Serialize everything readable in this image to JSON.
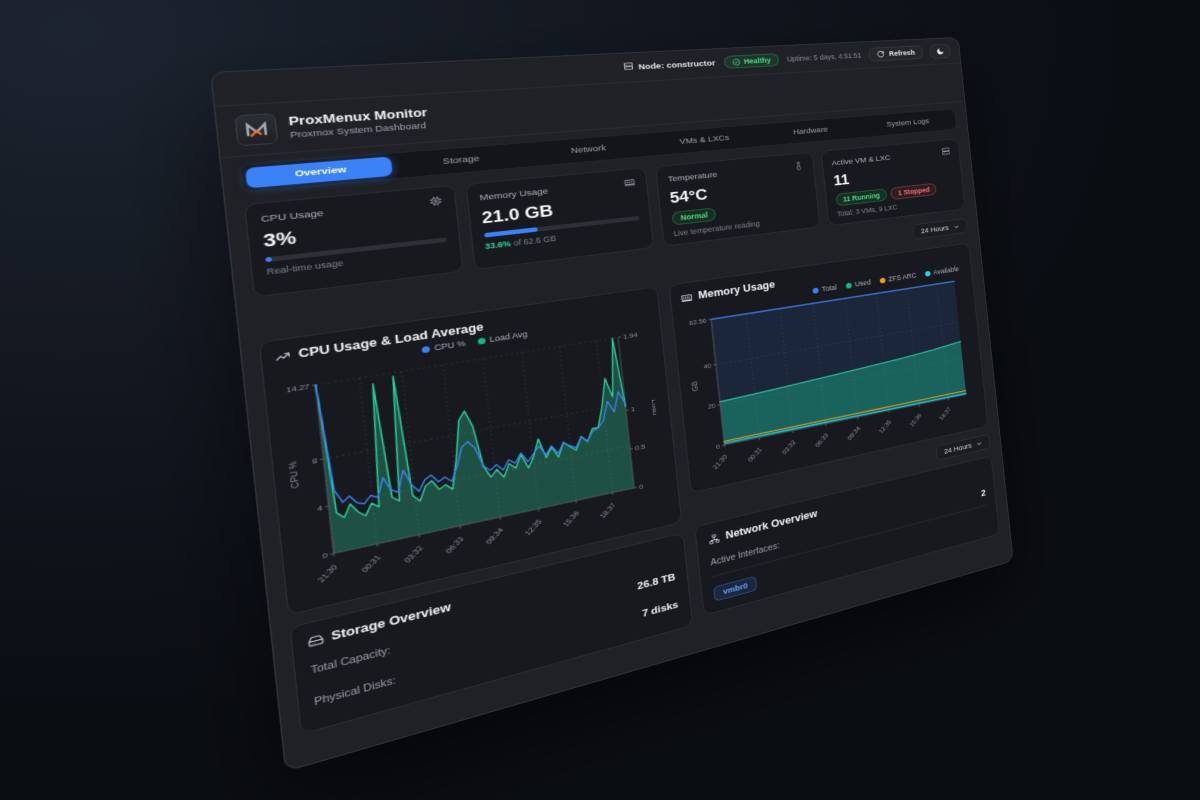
{
  "colors": {
    "accent": "#3b82f6",
    "green": "#4ade80",
    "red": "#f87171",
    "chart_green": "#2dd4a0",
    "orange": "#f59e0b",
    "cyan": "#22d3ee"
  },
  "icons": {
    "logo": "proxmenux-m",
    "node": "server",
    "health": "check-circle",
    "refresh": "refresh-arrows",
    "theme": "moon",
    "cpu": "cpu-chip",
    "memory": "ram-stick",
    "temperature": "thermometer",
    "vms": "server-stack",
    "cpu_chart": "trending-up",
    "memory_chart": "ram-stick",
    "storage": "hard-drive",
    "network": "org-chart",
    "select": "chevron-down"
  },
  "topbar": {
    "node_label": "Node: constructor",
    "health_label": "Healthy",
    "uptime": "Uptime: 5 days, 4:51:51",
    "refresh_label": "Refresh"
  },
  "header": {
    "title": "ProxMenux Monitor",
    "subtitle": "Proxmox System Dashboard"
  },
  "tabs": [
    {
      "label": "Overview",
      "active": true
    },
    {
      "label": "Storage",
      "active": false
    },
    {
      "label": "Network",
      "active": false
    },
    {
      "label": "VMs & LXCs",
      "active": false
    },
    {
      "label": "Hardware",
      "active": false
    },
    {
      "label": "System Logs",
      "active": false
    }
  ],
  "stats": {
    "cpu": {
      "label": "CPU Usage",
      "value": "3%",
      "pct": 3,
      "caption": "Real-time usage"
    },
    "memory": {
      "label": "Memory Usage",
      "value": "21.0 GB",
      "pct": 33.6,
      "caption_pct": "33.6%",
      "caption_rest": " of 62.6 GB"
    },
    "temperature": {
      "label": "Temperature",
      "value": "54°C",
      "badge": "Normal",
      "caption": "Live temperature reading"
    },
    "vms": {
      "label": "Active VM & LXC",
      "value": "11",
      "running_badge": "11 Running",
      "stopped_badge": "1 Stopped",
      "caption": "Total: 3 VMs, 9 LXC"
    }
  },
  "time_selector": {
    "label": "24 Hours"
  },
  "chart_data": [
    {
      "type": "line",
      "title": "CPU Usage & Load Average",
      "legend": [
        {
          "label": "CPU %",
          "color": "#3b82f6"
        },
        {
          "label": "Load Avg",
          "color": "#10b981"
        }
      ],
      "x_ticks": [
        "21:30",
        "00:31",
        "03:32",
        "06:33",
        "09:34",
        "12:35",
        "15:36",
        "18:37"
      ],
      "y_left": {
        "label": "CPU %",
        "ticks": [
          0,
          4,
          8
        ],
        "max": 14.27
      },
      "y_right": {
        "label": "Load",
        "ticks": [
          0,
          0.5,
          1
        ],
        "max": 1.94
      },
      "series": [
        {
          "name": "Load Avg",
          "axis": "right",
          "color": "#2dd4a0",
          "fill": "rgba(45,212,160,0.30)",
          "values": [
            1.94,
            0.45,
            0.38,
            0.52,
            0.41,
            0.35,
            0.48,
            0.42,
            1.85,
            0.5,
            0.44,
            1.9,
            0.47,
            0.39,
            0.55,
            0.6,
            0.48,
            0.52,
            0.45,
            0.8,
            1.25,
            1.35,
            1.15,
            0.65,
            0.5,
            0.58,
            0.47,
            0.62,
            0.55,
            0.7,
            0.52,
            0.65,
            0.85,
            0.6,
            0.72,
            0.58,
            0.75,
            0.68,
            0.62,
            0.78,
            0.7,
            0.85,
            0.85,
            1.1,
            1.45,
            1.2,
            1.94,
            1.05
          ]
        },
        {
          "name": "CPU %",
          "axis": "left",
          "color": "#3b82f6",
          "values": [
            14.27,
            5.2,
            4.1,
            4.5,
            3.8,
            3.6,
            4.2,
            3.9,
            5.5,
            4.3,
            4.0,
            5.8,
            4.4,
            3.7,
            4.6,
            4.9,
            4.2,
            4.5,
            4.0,
            5.2,
            6.8,
            7.2,
            6.5,
            4.8,
            4.3,
            4.7,
            4.1,
            4.9,
            4.5,
            5.3,
            4.4,
            5.0,
            5.6,
            4.7,
            5.4,
            4.6,
            5.5,
            5.1,
            4.8,
            5.7,
            5.2,
            6.0,
            6.2,
            6.8,
            8.5,
            7.4,
            9.2,
            8.0
          ]
        }
      ]
    },
    {
      "type": "area",
      "title": "Memory Usage",
      "legend": [
        {
          "label": "Total",
          "color": "#3b82f6"
        },
        {
          "label": "Used",
          "color": "#10b981"
        },
        {
          "label": "ZFS ARC",
          "color": "#f59e0b"
        },
        {
          "label": "Available",
          "color": "#22d3ee"
        }
      ],
      "x_ticks": [
        "21:30",
        "00:31",
        "03:32",
        "06:33",
        "09:34",
        "12:35",
        "15:36",
        "18:37"
      ],
      "y_left": {
        "label": "GB",
        "ticks": [
          0,
          20,
          40
        ],
        "max": 62.56
      },
      "series": [
        {
          "name": "Total",
          "axis": "left",
          "color": "#3b82f6",
          "fill": "rgba(59,130,246,0.13)",
          "values": [
            62.56,
            62.56,
            62.56,
            62.56,
            62.56,
            62.56,
            62.56,
            62.56,
            62.56
          ]
        },
        {
          "name": "Used",
          "axis": "left",
          "color": "#2dd4a0",
          "fill": "rgba(24,158,126,0.50)",
          "values": [
            21.5,
            22.1,
            22.8,
            23.6,
            24.4,
            25.3,
            26.3,
            27.6,
            29.3
          ]
        },
        {
          "name": "ZFS ARC",
          "axis": "left",
          "color": "#f59e0b",
          "values": [
            1.8,
            1.85,
            1.9,
            1.95,
            2.0,
            2.05,
            2.1,
            2.15,
            2.2
          ]
        },
        {
          "name": "Available",
          "axis": "left",
          "color": "#22d3ee",
          "values": [
            0.9,
            0.85,
            0.8,
            0.8,
            0.75,
            0.7,
            0.7,
            0.65,
            0.6
          ]
        }
      ]
    }
  ],
  "storage": {
    "title": "Storage Overview",
    "rows": [
      {
        "label": "Total Capacity:",
        "value": "26.8 TB"
      },
      {
        "label": "Physical Disks:",
        "value": "7 disks"
      }
    ]
  },
  "network": {
    "title": "Network Overview",
    "rows": [
      {
        "label": "Active Interfaces:",
        "value": "2"
      }
    ],
    "badge": "vmbr0"
  }
}
